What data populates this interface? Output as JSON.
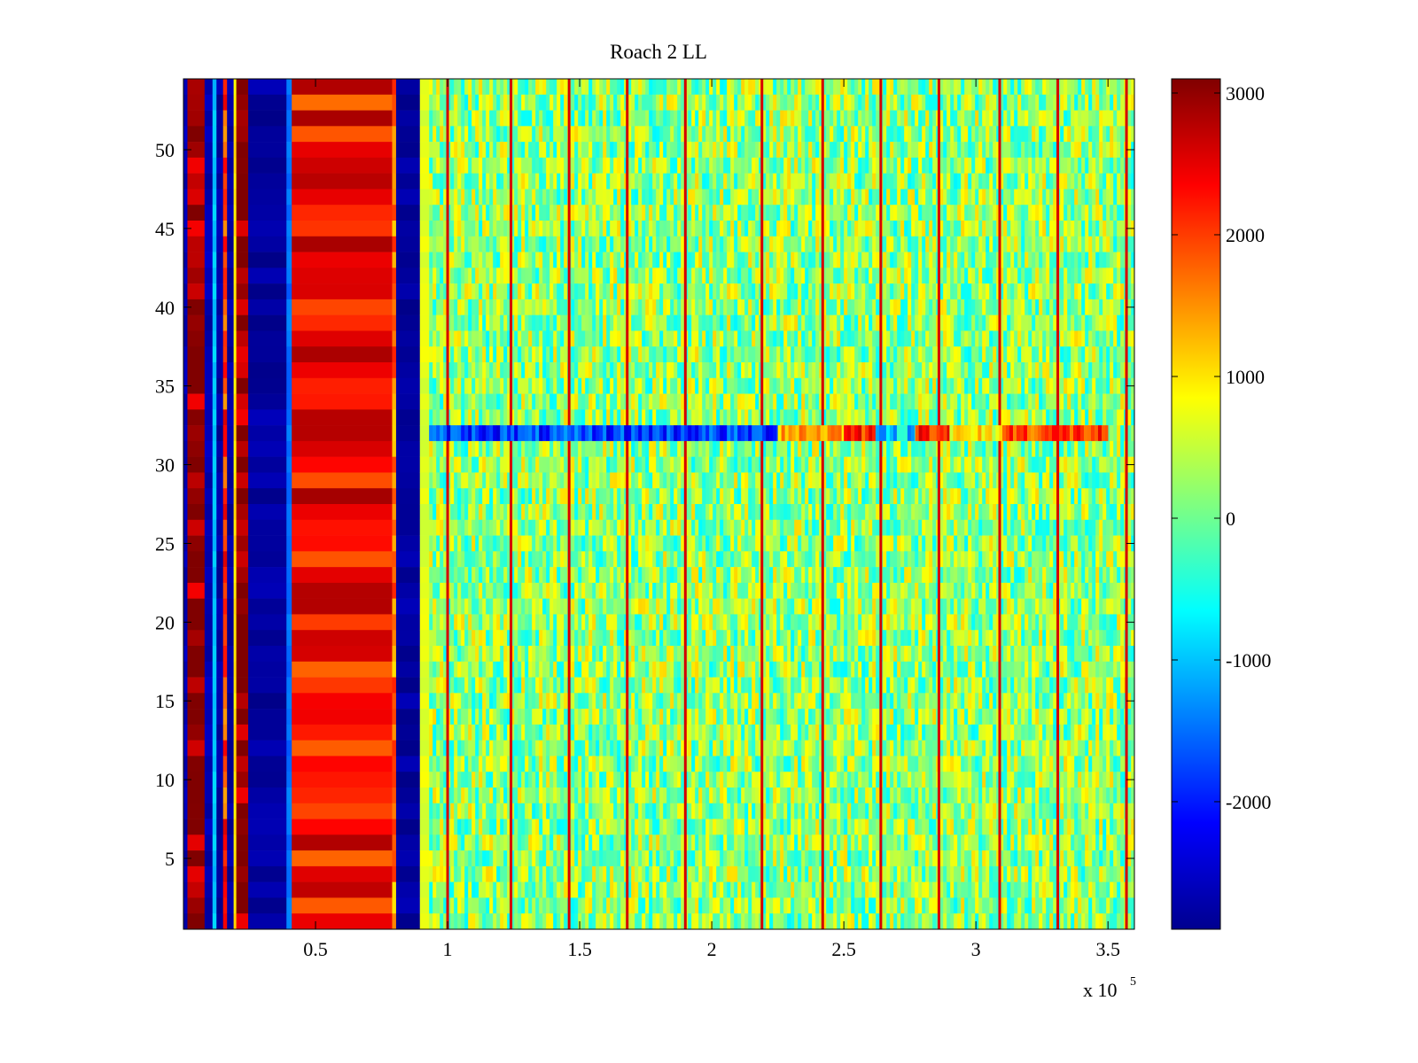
{
  "chart_data": {
    "type": "heatmap",
    "title": "Roach 2 LL",
    "xlabel": "",
    "ylabel": "",
    "colormap": "jet",
    "x_range": [
      0,
      360000
    ],
    "y_range": [
      0.5,
      54.5
    ],
    "rows": 54,
    "x_ticks": [
      50000,
      100000,
      150000,
      200000,
      250000,
      300000,
      350000
    ],
    "x_tick_labels": [
      "0.5",
      "1",
      "1.5",
      "2",
      "2.5",
      "3",
      "3.5"
    ],
    "x_exponent_label": "x 10",
    "x_exponent_power": "5",
    "y_ticks": [
      5,
      10,
      15,
      20,
      25,
      30,
      35,
      40,
      45,
      50
    ],
    "y_tick_labels": [
      "5",
      "10",
      "15",
      "20",
      "25",
      "30",
      "35",
      "40",
      "45",
      "50"
    ],
    "colorbar": {
      "range": [
        -2900,
        3100
      ],
      "ticks": [
        -2000,
        -1000,
        0,
        1000,
        2000,
        3000
      ],
      "tick_labels": [
        "-2000",
        "-1000",
        "0",
        "1000",
        "2000",
        "3000"
      ]
    },
    "column_bands": [
      {
        "x_start": 0,
        "x_end": 1500,
        "value": -2600,
        "label": "blue"
      },
      {
        "x_start": 1500,
        "x_end": 8000,
        "value": 3000,
        "label": "dark red"
      },
      {
        "x_start": 8000,
        "x_end": 11000,
        "value": -2600,
        "label": "blue"
      },
      {
        "x_start": 11000,
        "x_end": 12500,
        "value": -1000,
        "label": "cyan"
      },
      {
        "x_start": 12500,
        "x_end": 15000,
        "value": -2700,
        "label": "blue"
      },
      {
        "x_start": 15000,
        "x_end": 16500,
        "value": 2000,
        "label": "red"
      },
      {
        "x_start": 16500,
        "x_end": 19000,
        "value": -2700,
        "label": "blue"
      },
      {
        "x_start": 19000,
        "x_end": 20000,
        "value": 1000,
        "label": "yellow"
      },
      {
        "x_start": 20000,
        "x_end": 24500,
        "value": 3000,
        "label": "dark red"
      },
      {
        "x_start": 24500,
        "x_end": 39000,
        "value": -2700,
        "label": "dark blue"
      },
      {
        "x_start": 39000,
        "x_end": 41000,
        "value": -1500,
        "label": "blue edge"
      },
      {
        "x_start": 41000,
        "x_end": 79000,
        "value": 2300,
        "label": "red"
      },
      {
        "x_start": 79000,
        "x_end": 80500,
        "value": 1600,
        "label": "orange edge"
      },
      {
        "x_start": 80500,
        "x_end": 89500,
        "value": -2700,
        "label": "dark blue"
      },
      {
        "x_start": 89500,
        "x_end": 93000,
        "value": 700,
        "label": "yellow edge"
      },
      {
        "x_start": 93000,
        "x_end": 360000,
        "value": 0,
        "label": "green/cyan noise"
      }
    ],
    "vertical_lines_x": [
      100000,
      124000,
      146000,
      168000,
      190000,
      219000,
      242000,
      264000,
      286000,
      309000,
      331000,
      357000
    ],
    "anomalous_row": {
      "row": 32,
      "segments": [
        {
          "x_start": 93000,
          "x_end": 225000,
          "value": -1800,
          "label": "blue"
        },
        {
          "x_start": 225000,
          "x_end": 250000,
          "value": 1500,
          "label": "orange"
        },
        {
          "x_start": 250000,
          "x_end": 262000,
          "value": 2200,
          "label": "red"
        },
        {
          "x_start": 262000,
          "x_end": 277000,
          "value": -900,
          "label": "cyan"
        },
        {
          "x_start": 277000,
          "x_end": 290000,
          "value": 2300,
          "label": "red"
        },
        {
          "x_start": 290000,
          "x_end": 310000,
          "value": 900,
          "label": "yellow"
        },
        {
          "x_start": 310000,
          "x_end": 350000,
          "value": 2000,
          "label": "orange-red"
        }
      ]
    }
  }
}
